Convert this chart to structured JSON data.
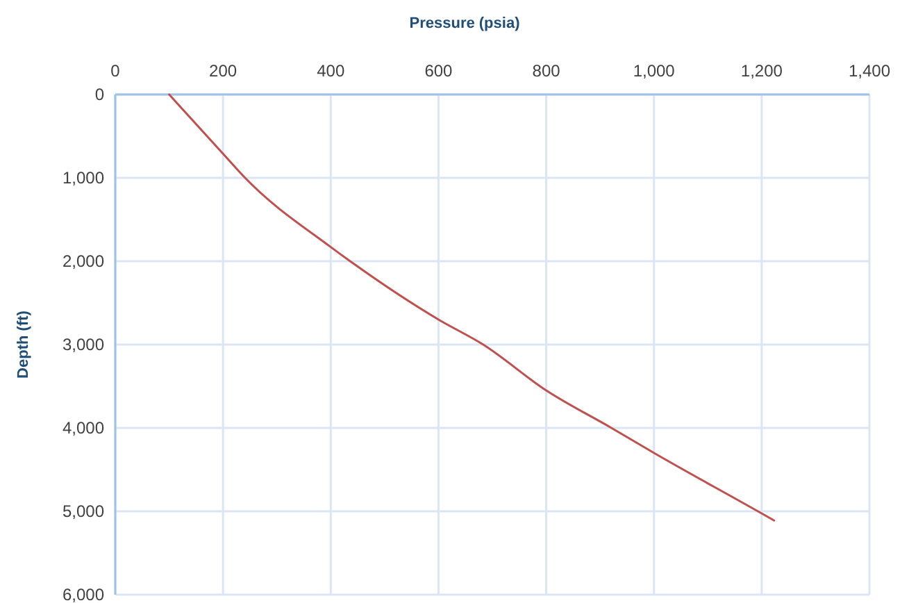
{
  "chart_data": {
    "type": "line",
    "xlabel": "Pressure (psia)",
    "ylabel": "Depth (ft)",
    "series": [
      {
        "color": "#c0504d",
        "x": [
          100,
          200,
          241,
          400,
          436,
          600,
          683,
          800,
          921,
          1000,
          1193,
          1223
        ],
        "values": [
          0,
          710,
          1000,
          1830,
          2000,
          2700,
          3000,
          3550,
          4000,
          4300,
          5000,
          5110
        ]
      }
    ],
    "xlim": [
      0,
      1400
    ],
    "xticks": [
      0,
      200,
      400,
      600,
      800,
      {
        "value": 1000,
        "label": "1,000"
      },
      {
        "value": 1200,
        "label": "1,200"
      },
      {
        "value": 1400,
        "label": "1,400"
      }
    ],
    "ylim": [
      6000,
      0
    ],
    "yticks": [
      0,
      {
        "value": 1000,
        "label": "1,000"
      },
      {
        "value": 2000,
        "label": "2,000"
      },
      {
        "value": 3000,
        "label": "3,000"
      },
      {
        "value": 4000,
        "label": "4,000"
      },
      {
        "value": 5000,
        "label": "5,000"
      },
      {
        "value": 6000,
        "label": "6,000"
      }
    ],
    "grid": true,
    "marker": "none",
    "line_style": "solid"
  }
}
